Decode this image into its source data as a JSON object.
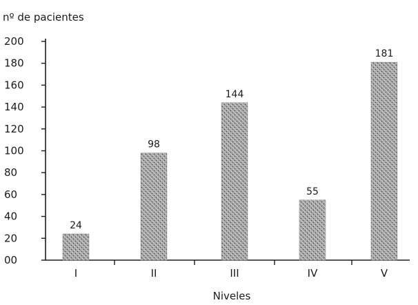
{
  "chart_data": {
    "type": "bar",
    "title": "",
    "ylabel": "nº de pacientes",
    "xlabel": "Niveles",
    "categories": [
      "I",
      "II",
      "III",
      "IV",
      "V"
    ],
    "values": [
      24,
      98,
      144,
      55,
      181
    ],
    "ylim": [
      0,
      200
    ],
    "yticks": [
      0,
      20,
      40,
      60,
      80,
      100,
      120,
      140,
      160,
      180,
      200
    ],
    "ytick_labels": [
      "00",
      "20",
      "40",
      "60",
      "80",
      "100",
      "120",
      "140",
      "160",
      "180",
      "200"
    ],
    "grid": false,
    "legend": "none",
    "bar_color": "#9a9a9a",
    "bar_pattern": "stippled"
  }
}
